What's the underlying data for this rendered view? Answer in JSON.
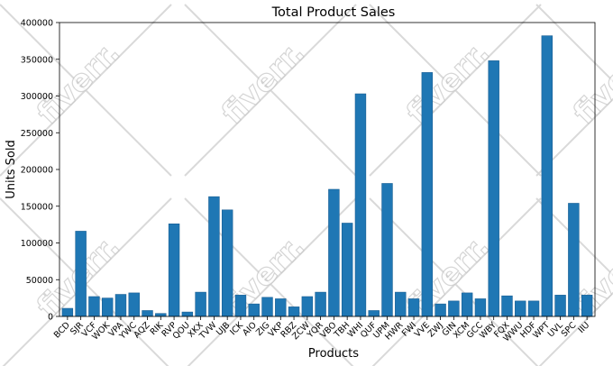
{
  "chart_data": {
    "type": "bar",
    "title": "Total Product Sales",
    "xlabel": "Products",
    "ylabel": "Units Sold",
    "ylim": [
      0,
      400000
    ],
    "yticks": [
      0,
      50000,
      100000,
      150000,
      200000,
      250000,
      300000,
      350000,
      400000
    ],
    "ytick_labels": [
      "0",
      "50000",
      "100000",
      "150000",
      "200000",
      "250000",
      "300000",
      "350000",
      "400000"
    ],
    "grid": false,
    "bar_color": "#1f77b4",
    "categories": [
      "BCD",
      "SJR",
      "VCF",
      "WOK",
      "VPA",
      "YWC",
      "AQZ",
      "RIK",
      "RVP",
      "QOU",
      "XKX",
      "TVW",
      "UJB",
      "ICK",
      "AIO",
      "ZIG",
      "VKP",
      "RBZ",
      "ZCW",
      "YQR",
      "VBO",
      "TBH",
      "WHI",
      "QUF",
      "UPM",
      "HWR",
      "FWI",
      "VVE",
      "ZWJ",
      "GIN",
      "XCM",
      "GCC",
      "WBY",
      "FQX",
      "WWU",
      "HDF",
      "WPT",
      "UVL",
      "SPC",
      "IIU"
    ],
    "values": [
      11000,
      116000,
      27000,
      25000,
      30000,
      32000,
      8000,
      4000,
      126000,
      6000,
      33000,
      163000,
      145000,
      29000,
      17000,
      26000,
      24000,
      13000,
      27000,
      33000,
      173000,
      127000,
      303000,
      8000,
      181000,
      33000,
      24000,
      332000,
      17000,
      21000,
      32000,
      24000,
      348000,
      28000,
      21000,
      21000,
      382000,
      29000,
      154000,
      29000
    ]
  },
  "watermark": {
    "text": "fiverr."
  }
}
